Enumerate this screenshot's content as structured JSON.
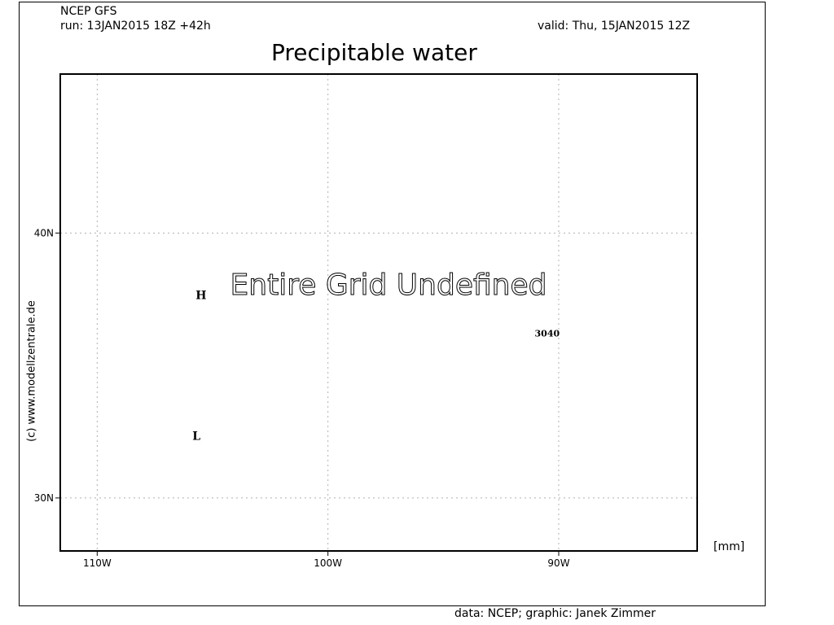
{
  "header": {
    "model": "NCEP GFS",
    "run": "run: 13JAN2015 18Z +42h",
    "valid": "valid: Thu, 15JAN2015 12Z"
  },
  "title": "Precipitable water",
  "map": {
    "lon_range": [
      -111.6,
      -84
    ],
    "lat_range": [
      28,
      46
    ],
    "lon_ticks": [
      -110,
      -100,
      -90
    ],
    "lat_ticks": [
      30,
      40
    ],
    "lon_tick_labels": [
      "110W",
      "100W",
      "90W"
    ],
    "lat_tick_labels": [
      "30N",
      "40N"
    ],
    "grid": true,
    "grid_color": "#b0b0b0",
    "message": "Entire Grid Undefined",
    "markers": [
      {
        "label": "H",
        "lon": -105.5,
        "lat": 37.5
      },
      {
        "label": "L",
        "lon": -105.7,
        "lat": 32.2
      },
      {
        "label": "3040",
        "lon": -90.5,
        "lat": 36.1
      }
    ]
  },
  "units": "[mm]",
  "credit": "data: NCEP; graphic: Janek Zimmer",
  "copyright": "(c) www.modellzentrale.de"
}
